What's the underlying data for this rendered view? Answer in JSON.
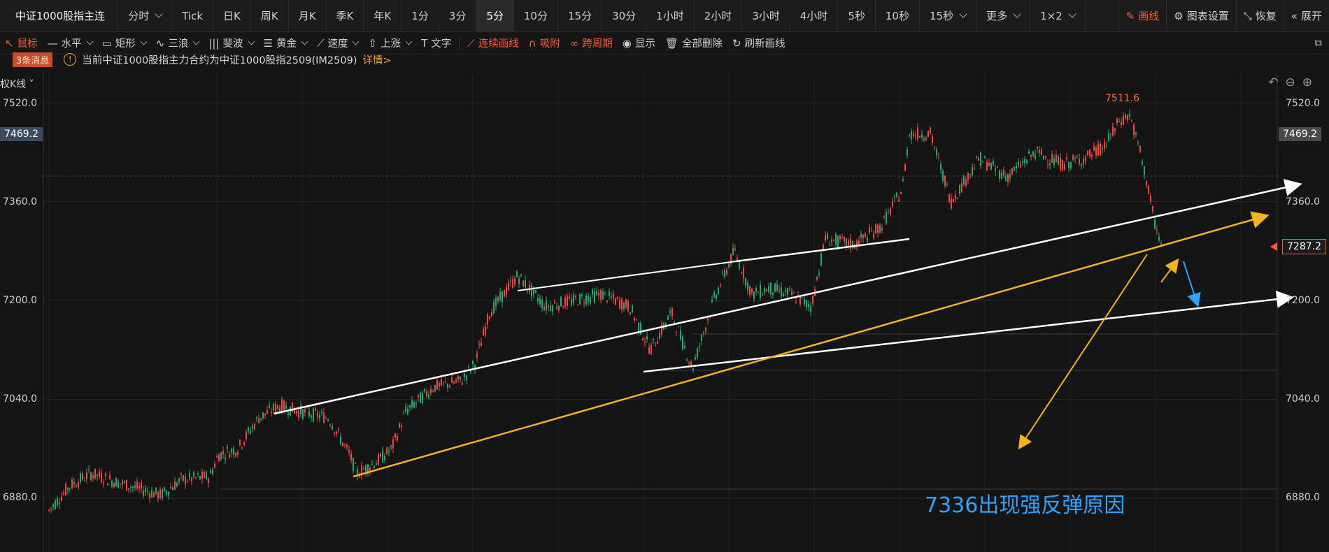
{
  "toolbar": {
    "title": "中证1000股指主连",
    "periods": [
      "分时",
      "Tick",
      "日K",
      "周K",
      "月K",
      "季K",
      "年K",
      "1分",
      "3分",
      "5分",
      "10分",
      "15分",
      "30分",
      "1小时",
      "2小时",
      "3小时",
      "4小时",
      "5秒",
      "10秒",
      "15秒",
      "更多",
      "1×2"
    ],
    "active_period": "5分",
    "right": {
      "draw": "画线",
      "settings": "图表设置",
      "restore": "恢复",
      "expand": "展开"
    }
  },
  "drawbar": {
    "items": [
      "鼠标",
      "水平",
      "矩形",
      "三浪",
      "斐波",
      "黄金",
      "速度",
      "上涨",
      "文字"
    ],
    "red_items": [
      "连续画线",
      "吸附",
      "跨周期"
    ],
    "plain_items": [
      "显示",
      "全部删除",
      "刷新画线"
    ]
  },
  "message": {
    "count": "3条消息",
    "text": "当前中证1000股指主力合约为中证1000股指2509(IM2509)",
    "link": "详情>"
  },
  "chart": {
    "kline_label": "权K线",
    "y_axis_ticks": [
      "7520.0",
      "7360.0",
      "7200.0",
      "7040.0",
      "6880.0"
    ],
    "tick_values": [
      7520,
      7360,
      7200,
      7040,
      6880
    ],
    "high_label": "7511.6",
    "left_price_tag": "7469.2",
    "right_price_tag": "7469.2",
    "current_price_tag": "7287.2",
    "annotation": "7336出现强反弹原因",
    "colors": {
      "up": "#ff4040",
      "down": "#1fae6f",
      "yellow": "#f5b31f",
      "blue": "#2ea3ff",
      "annotation": "#2ea3ff"
    }
  }
}
